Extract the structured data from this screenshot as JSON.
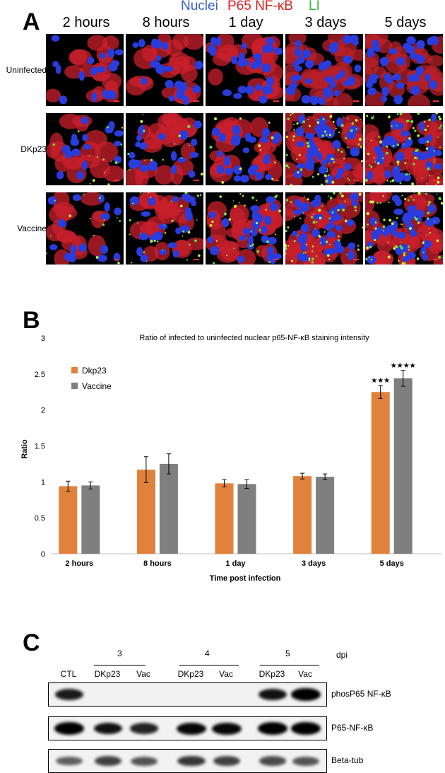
{
  "panel_a": {
    "letter": "A",
    "legend": [
      {
        "text": "Nuclei",
        "color": "#3a5fcd"
      },
      {
        "text": "P65 NF-κB",
        "color": "#e02020"
      },
      {
        "text": "LI",
        "color": "#38b038"
      }
    ],
    "timepoints": [
      "2 hours",
      "8 hours",
      "1 day",
      "3 days",
      "5 days"
    ],
    "conditions": [
      "Uninfected",
      "DKp23",
      "Vaccine"
    ],
    "green_level": [
      [
        0,
        0,
        0,
        0,
        0
      ],
      [
        0.15,
        0.15,
        0.12,
        0.75,
        0.8
      ],
      [
        0.15,
        0.35,
        0.35,
        0.7,
        0.75
      ]
    ]
  },
  "panel_b": {
    "letter": "B"
  },
  "chart_data": {
    "type": "bar",
    "title": "Ratio of infected to uninfected nuclear p65-NF-κB staining intensity",
    "xlabel": "Time post infection",
    "ylabel": "Ratio",
    "categories": [
      "2 hours",
      "8 hours",
      "1 day",
      "3 days",
      "5 days"
    ],
    "ylim": [
      0,
      3
    ],
    "yticks": [
      "0",
      "0.5",
      "1",
      "1.5",
      "2",
      "2.5",
      "3"
    ],
    "grid": false,
    "legend_position": "top-left",
    "series": [
      {
        "name": "Dkp23",
        "color": "#e0823c",
        "values": [
          0.94,
          1.17,
          0.98,
          1.08,
          2.25
        ],
        "errors": [
          0.07,
          0.18,
          0.05,
          0.04,
          0.09
        ],
        "annotations": [
          "",
          "",
          "",
          "",
          "★★★"
        ]
      },
      {
        "name": "Vaccine",
        "color": "#7f7f7f",
        "values": [
          0.95,
          1.25,
          0.97,
          1.07,
          2.44
        ],
        "errors": [
          0.05,
          0.14,
          0.06,
          0.04,
          0.11
        ],
        "annotations": [
          "",
          "",
          "",
          "",
          "★★★★"
        ]
      }
    ]
  },
  "panel_c": {
    "letter": "C",
    "dpi_label": "dpi",
    "groups": [
      "3",
      "4",
      "5"
    ],
    "lanes": [
      "CTL",
      "DKp23",
      "Vac",
      "DKp23",
      "Vac",
      "DKp23",
      "Vac"
    ],
    "blots": [
      {
        "label": "phosP65 NF-κB",
        "intensity": [
          0.8,
          0,
          0,
          0,
          0,
          0.85,
          0.95
        ]
      },
      {
        "label": "P65-NF-κB",
        "intensity": [
          0.95,
          0.85,
          0.75,
          0.9,
          0.9,
          0.95,
          0.95
        ]
      },
      {
        "label": "Beta-tub",
        "intensity": [
          0.45,
          0.6,
          0.5,
          0.65,
          0.6,
          0.55,
          0.5
        ]
      }
    ]
  }
}
